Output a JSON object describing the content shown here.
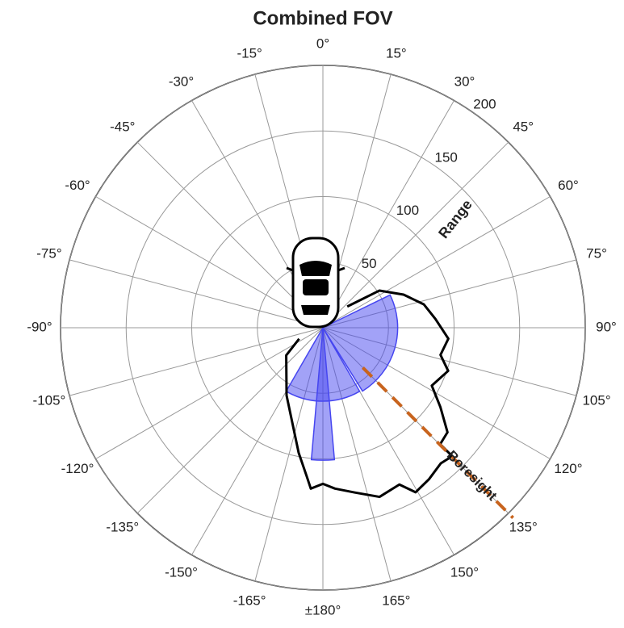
{
  "chart_data": {
    "type": "polar",
    "title": "Combined FOV",
    "rlim": [
      0,
      200
    ],
    "rticks": [
      50,
      100,
      150,
      200
    ],
    "thetaticks": [
      {
        "value": 0,
        "label": "0°"
      },
      {
        "value": 15,
        "label": "15°"
      },
      {
        "value": 30,
        "label": "30°"
      },
      {
        "value": 45,
        "label": "45°"
      },
      {
        "value": 60,
        "label": "60°"
      },
      {
        "value": 75,
        "label": "75°"
      },
      {
        "value": 90,
        "label": "90°"
      },
      {
        "value": 105,
        "label": "105°"
      },
      {
        "value": 120,
        "label": "120°"
      },
      {
        "value": 135,
        "label": "135°"
      },
      {
        "value": 150,
        "label": "150°"
      },
      {
        "value": 165,
        "label": "165°"
      },
      {
        "value": 180,
        "label": "±180°"
      },
      {
        "value": -165,
        "label": "-165°"
      },
      {
        "value": -150,
        "label": "-150°"
      },
      {
        "value": -135,
        "label": "-135°"
      },
      {
        "value": -120,
        "label": "-120°"
      },
      {
        "value": -105,
        "label": "-105°"
      },
      {
        "value": -90,
        "label": "-90°"
      },
      {
        "value": -75,
        "label": "-75°"
      },
      {
        "value": -60,
        "label": "-60°"
      },
      {
        "value": -45,
        "label": "-45°"
      },
      {
        "value": -30,
        "label": "-30°"
      },
      {
        "value": -15,
        "label": "-15°"
      }
    ],
    "range_label": "Range",
    "coverage": {
      "color": "#000000",
      "azimuth": [
        49,
        56.7,
        67.7,
        77,
        85.5,
        95,
        103,
        109,
        118,
        124,
        130,
        134.8,
        134.8,
        139,
        145,
        150.6,
        154,
        161.5,
        169,
        175.7,
        180,
        184.3,
        186.2,
        191,
        208.2,
        233,
        245
      ],
      "range": [
        24.6,
        51.6,
        66.5,
        79,
        86,
        96,
        92,
        101,
        94,
        108,
        124,
        126,
        139,
        137,
        141,
        144,
        133,
        136,
        128,
        123,
        119,
        123,
        114,
        97,
        58.6,
        35,
        20
      ]
    },
    "sensors": {
      "color": "#4646f0",
      "azimuth": [
        106,
        180,
        180
      ],
      "fov": [
        84,
        60,
        10
      ],
      "range": [
        57,
        56,
        101
      ]
    },
    "boresight": {
      "label": "Boresight",
      "color": "#c8641e",
      "azimuth": 135,
      "range": [
        43,
        205
      ]
    }
  }
}
